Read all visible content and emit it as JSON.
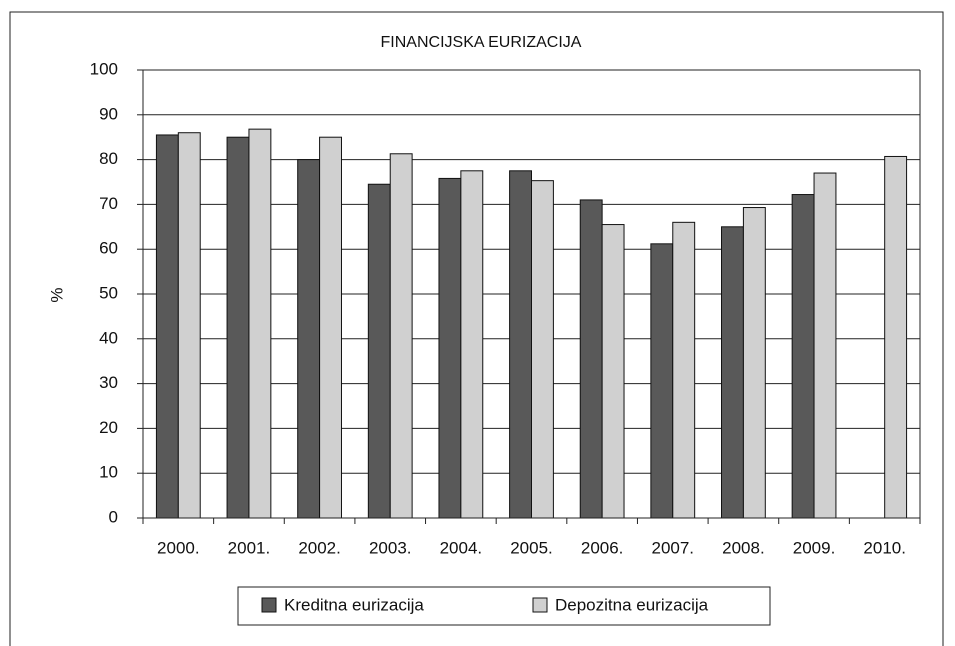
{
  "chart_data": {
    "type": "bar",
    "title": "FINANCIJSKA EURIZACIJA",
    "y_label": "%",
    "categories": [
      "2000.",
      "2001.",
      "2002.",
      "2003.",
      "2004.",
      "2005.",
      "2006.",
      "2007.",
      "2008.",
      "2009.",
      "2010."
    ],
    "series": [
      {
        "name": "Kreditna eurizacija",
        "color": "#595959",
        "values": [
          85.5,
          85,
          80,
          74.5,
          75.8,
          77.5,
          71,
          61.2,
          65,
          72.2,
          null
        ]
      },
      {
        "name": "Depozitna eurizacija",
        "color": "#d0d0d0",
        "values": [
          86,
          86.8,
          85,
          81.3,
          77.5,
          75.3,
          65.5,
          66,
          69.3,
          77,
          80.7
        ]
      }
    ],
    "ylim": [
      0,
      100
    ],
    "yticks": [
      0,
      10,
      20,
      30,
      40,
      50,
      60,
      70,
      80,
      90,
      100
    ],
    "grid": true,
    "legend": "bottom"
  }
}
